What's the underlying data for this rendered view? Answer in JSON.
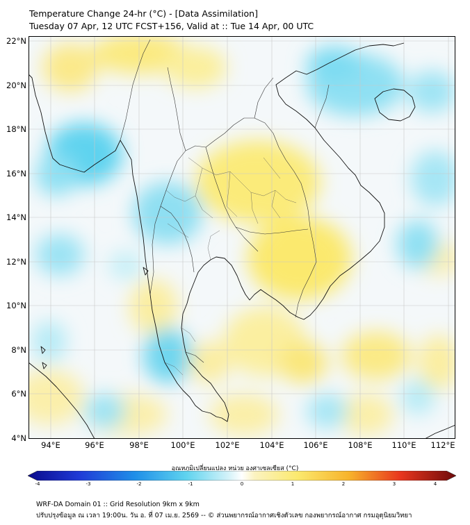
{
  "header": {
    "title_line1": "Temperature Change 24-hr (°C) - [Data Assimilation]",
    "title_line2": "Tuesday 07 Apr, 12 UTC FCST+156, Valid at :: Tue 14 Apr, 00 UTC"
  },
  "map": {
    "y_axis_labels": [
      "22°N",
      "20°N",
      "18°N",
      "16°N",
      "14°N",
      "12°N",
      "10°N",
      "8°N",
      "6°N",
      "4°N"
    ],
    "x_axis_labels": [
      "94°E",
      "96°E",
      "98°E",
      "100°E",
      "102°E",
      "104°E",
      "106°E",
      "108°E",
      "110°E",
      "112°E"
    ],
    "lat_range": [
      4,
      22
    ],
    "lon_range": [
      93,
      112.3
    ],
    "colors": {
      "ocean_base": "#f4f8fa",
      "land_base": "#fafaf0",
      "warm": "#fbeb7a",
      "cool": "#5fd3ef",
      "coast": "#111111",
      "grid": "#c8c8c8"
    }
  },
  "colorbar": {
    "title": "อุณหภูมิเปลี่ยนแปลง หน่วย องศาเซลเซียส (°C)",
    "tick_labels": [
      "-4",
      "-3",
      "-2",
      "-1",
      "0",
      "1",
      "2",
      "3",
      "4"
    ],
    "range": [
      -4,
      4
    ]
  },
  "footer": {
    "line1": "WRF-DA Domain 01 :: Grid Resolution 9km x 9km",
    "line2": "ปรับปรุงข้อมูล ณ เวลา 19:00น. วัน อ. ที่ 07 เม.ย. 2569 -- © ส่วนพยากรณ์อากาศเชิงตัวเลข กองพยากรณ์อากาศ กรมอุตุนิยมวิทยา"
  }
}
